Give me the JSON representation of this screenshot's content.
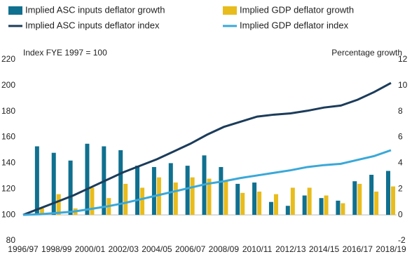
{
  "chart_data": {
    "type": "combo",
    "y_label": "Index FYE 1997 = 100",
    "y2_label": "Percentage growth",
    "categories": [
      "1996/97",
      null,
      "1998/99",
      null,
      "2000/01",
      null,
      "2002/03",
      null,
      "2004/05",
      null,
      "2006/07",
      null,
      "2008/09",
      null,
      "2010/11",
      null,
      "2012/13",
      null,
      "2014/15",
      null,
      "2016/17",
      null,
      "2018/19"
    ],
    "ylim": [
      80,
      220
    ],
    "yticks": [
      80,
      100,
      120,
      140,
      160,
      180,
      200,
      220
    ],
    "y2lim": [
      -2,
      12
    ],
    "y2ticks": [
      -2,
      0,
      2,
      4,
      6,
      8,
      10,
      12
    ],
    "series": [
      {
        "name": "Implied ASC inputs deflator growth",
        "type": "bar",
        "axis": "y2",
        "color": "#10708f",
        "values": [
          null,
          5.3,
          4.8,
          4.2,
          5.5,
          5.3,
          5.0,
          3.8,
          3.7,
          4.0,
          3.8,
          4.6,
          3.7,
          2.4,
          2.5,
          1.0,
          0.7,
          1.5,
          1.3,
          1.1,
          2.6,
          3.1,
          3.4
        ]
      },
      {
        "name": "Implied GDP deflator growth",
        "type": "bar",
        "axis": "y2",
        "color": "#e8bc1c",
        "values": [
          null,
          0.5,
          1.6,
          0.5,
          2.1,
          1.3,
          2.4,
          2.1,
          2.9,
          2.5,
          2.9,
          2.8,
          2.6,
          1.7,
          1.8,
          1.6,
          2.1,
          2.1,
          1.5,
          0.9,
          2.4,
          1.8,
          2.2
        ]
      },
      {
        "name": "Implied ASC inputs deflator index",
        "type": "line",
        "axis": "y",
        "color": "#1c3c5a",
        "values": [
          100,
          105,
          110,
          115,
          121,
          127,
          133,
          138,
          143,
          149,
          155,
          162,
          168,
          172,
          176,
          177.5,
          178.5,
          180.5,
          183,
          184.5,
          189,
          195,
          202
        ]
      },
      {
        "name": "Implied GDP deflator index",
        "type": "line",
        "axis": "y",
        "color": "#3aa8d8",
        "values": [
          100,
          100.5,
          101.5,
          102.5,
          104.5,
          106.5,
          109,
          112,
          115,
          118,
          121,
          124,
          126,
          128.5,
          130.5,
          132.5,
          134.5,
          137,
          138.5,
          139.5,
          142.5,
          145.5,
          150
        ]
      }
    ]
  }
}
